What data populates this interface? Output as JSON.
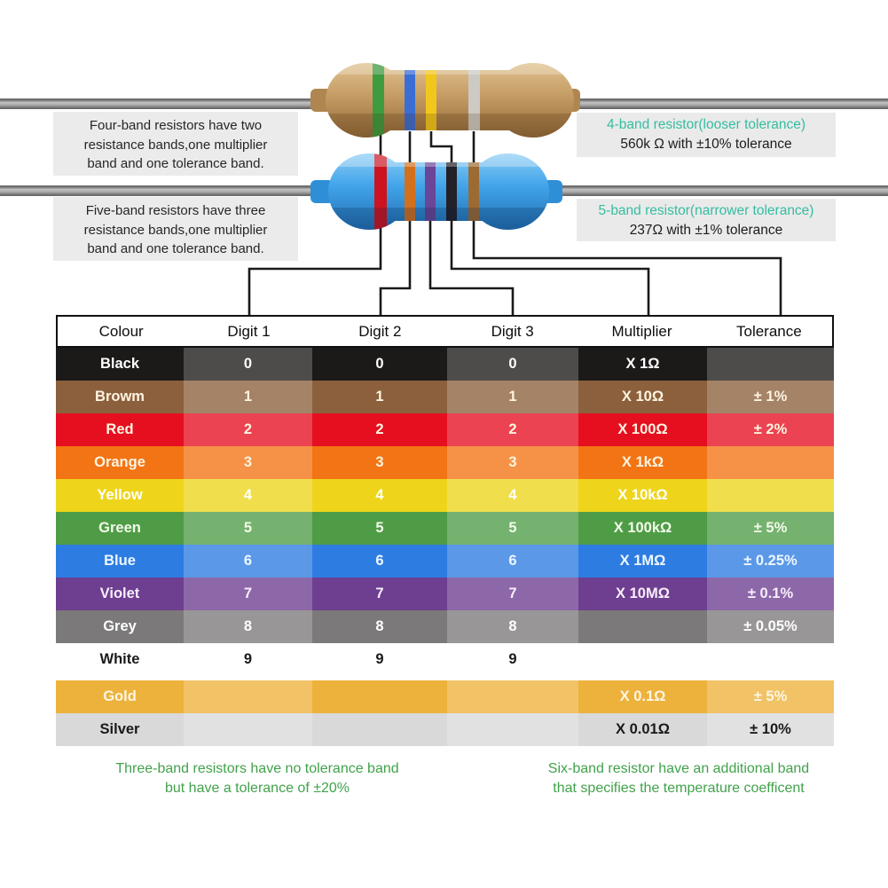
{
  "colors": {
    "teal": "#35bda1",
    "note_green": "#41a24b",
    "body_tan": "#c49a63",
    "body_blue": "#42a4ea",
    "band_green": "#3e9b40",
    "band_blue": "#3b6ed4",
    "band_yellow": "#f2c71d",
    "band_silver": "#cdcac4",
    "band_red": "#cc1420",
    "band_orange": "#d2701e",
    "band_violet": "#6b4597",
    "band_black": "#232028",
    "band_brown": "#9c6a33"
  },
  "left_notes": {
    "four_band": [
      "Four-band resistors have two",
      "resistance bands,one multiplier",
      "band and one tolerance band."
    ],
    "five_band": [
      "Five-band resistors have three",
      "resistance bands,one multiplier",
      "band and one tolerance band."
    ]
  },
  "right_labels": {
    "four_band_title": "4-band resistor(looser tolerance)",
    "four_band_value": "560k Ω with ±10% tolerance",
    "five_band_title": "5-band resistor(narrower tolerance)",
    "five_band_value": "237Ω with ±1% tolerance"
  },
  "resistors": {
    "four_band": {
      "bands": [
        "green",
        "blue",
        "yellow",
        "silver"
      ]
    },
    "five_band": {
      "bands": [
        "red",
        "orange",
        "violet",
        "black",
        "brown"
      ]
    }
  },
  "table": {
    "headers": [
      "Colour",
      "Digit 1",
      "Digit 2",
      "Digit 3",
      "Multiplier",
      "Tolerance"
    ],
    "rows": [
      {
        "colour": "Black",
        "bg": "#1c1a19",
        "text_color": "#ffffff",
        "d1": "0",
        "d2": "0",
        "d3": "0",
        "multiplier": "X 1Ω",
        "tolerance": ""
      },
      {
        "colour": "Browm",
        "bg": "#8c603d",
        "text_color": "#fdf4e0",
        "d1": "1",
        "d2": "1",
        "d3": "1",
        "multiplier": "X 10Ω",
        "tolerance": "± 1%"
      },
      {
        "colour": "Red",
        "bg": "#e60f20",
        "text_color": "#fdf4e0",
        "d1": "2",
        "d2": "2",
        "d3": "2",
        "multiplier": "X 100Ω",
        "tolerance": "± 2%"
      },
      {
        "colour": "Orange",
        "bg": "#f27414",
        "text_color": "#fdf4e0",
        "d1": "3",
        "d2": "3",
        "d3": "3",
        "multiplier": "X 1kΩ",
        "tolerance": ""
      },
      {
        "colour": "Yellow",
        "bg": "#eed51b",
        "text_color": "#ffffff",
        "d1": "4",
        "d2": "4",
        "d3": "4",
        "multiplier": "X 10kΩ",
        "tolerance": ""
      },
      {
        "colour": "Green",
        "bg": "#4f9c47",
        "text_color": "#f2fbe9",
        "d1": "5",
        "d2": "5",
        "d3": "5",
        "multiplier": "X 100kΩ",
        "tolerance": "± 5%"
      },
      {
        "colour": "Blue",
        "bg": "#2d7ce2",
        "text_color": "#eef7ff",
        "d1": "6",
        "d2": "6",
        "d3": "6",
        "multiplier": "X 1MΩ",
        "tolerance": "± 0.25%"
      },
      {
        "colour": "Violet",
        "bg": "#6e3e90",
        "text_color": "#f7eefc",
        "d1": "7",
        "d2": "7",
        "d3": "7",
        "multiplier": "X 10MΩ",
        "tolerance": "± 0.1%"
      },
      {
        "colour": "Grey",
        "bg": "#7b7979",
        "text_color": "#ffffff",
        "d1": "8",
        "d2": "8",
        "d3": "8",
        "multiplier": "",
        "tolerance": "± 0.05%"
      },
      {
        "colour": "White",
        "bg": "#ffffff",
        "text_color": "#1a1a1a",
        "d1": "9",
        "d2": "9",
        "d3": "9",
        "multiplier": "",
        "tolerance": ""
      },
      {
        "colour": "Gold",
        "bg": "#edb23c",
        "text_color": "#fdf6e3",
        "d1": "",
        "d2": "",
        "d3": "",
        "multiplier": "X 0.1Ω",
        "tolerance": "± 5%",
        "gap_before": true
      },
      {
        "colour": "Silver",
        "bg": "#d9d9d9",
        "text_color": "#1a1a1a",
        "d1": "",
        "d2": "",
        "d3": "",
        "multiplier": "X 0.01Ω",
        "tolerance": "± 10%"
      }
    ]
  },
  "footnotes": {
    "three_band": [
      "Three-band resistors have no tolerance band",
      "but have a tolerance of ±20%"
    ],
    "six_band": [
      "Six-band resistor have an additional band",
      "that specifies the temperature coefficent"
    ]
  }
}
